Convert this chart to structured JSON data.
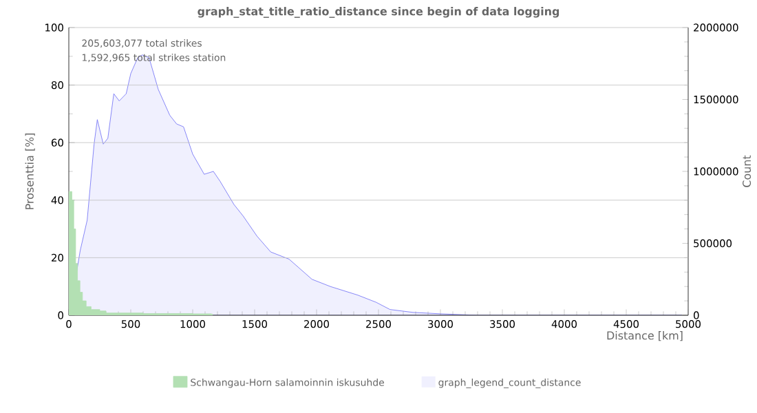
{
  "chart_data": {
    "type": "area",
    "title": "graph_stat_title_ratio_distance since begin of data logging",
    "xlabel": "Distance   [km]",
    "ylabel": "Prosenttia   [%]",
    "y2label": "Count",
    "annotations": [
      "205,603,077 total strikes",
      "1,592,965 total strikes station"
    ],
    "xlim": [
      0,
      5000
    ],
    "xticks": [
      0,
      500,
      1000,
      1500,
      2000,
      2500,
      3000,
      3500,
      4000,
      4500,
      5000
    ],
    "ylim": [
      0,
      100
    ],
    "yticks": [
      0,
      20,
      40,
      60,
      80,
      100
    ],
    "y2lim": [
      0,
      2000000
    ],
    "y2ticks": [
      0,
      500000,
      1000000,
      1500000,
      2000000
    ],
    "grid": "y",
    "legend": "bottom",
    "series": [
      {
        "name": "Schwangau-Horn salamoinnin iskusuhde",
        "color": "#b3e0b3",
        "x": [
          0,
          25,
          40,
          55,
          70,
          90,
          110,
          140,
          180,
          250,
          300,
          600,
          1000,
          1150,
          1160
        ],
        "values": [
          43,
          40,
          30,
          18,
          12,
          8,
          5,
          3,
          2,
          1.5,
          0.8,
          0.6,
          0.5,
          0.4,
          0
        ]
      },
      {
        "name": "graph_legend_count_distance",
        "color": "#6b6bf5",
        "axis": "y2",
        "x": [
          0,
          11,
          55,
          92,
          148,
          204,
          230,
          278,
          315,
          363,
          407,
          463,
          500,
          556,
          593,
          648,
          722,
          815,
          870,
          926,
          1000,
          1093,
          1167,
          1222,
          1333,
          1407,
          1519,
          1630,
          1778,
          1963,
          2111,
          2333,
          2481,
          2593,
          2778,
          3000,
          3300,
          3500,
          4000,
          4500,
          4950
        ],
        "values": [
          0,
          70000,
          260000,
          450000,
          660000,
          1190000,
          1360000,
          1190000,
          1230000,
          1540000,
          1490000,
          1540000,
          1680000,
          1790000,
          1810000,
          1790000,
          1570000,
          1390000,
          1330000,
          1310000,
          1120000,
          980000,
          1000000,
          930000,
          770000,
          690000,
          550000,
          440000,
          390000,
          250000,
          200000,
          140000,
          90000,
          40000,
          20000,
          10000,
          0,
          0,
          0,
          0,
          0
        ]
      }
    ]
  }
}
